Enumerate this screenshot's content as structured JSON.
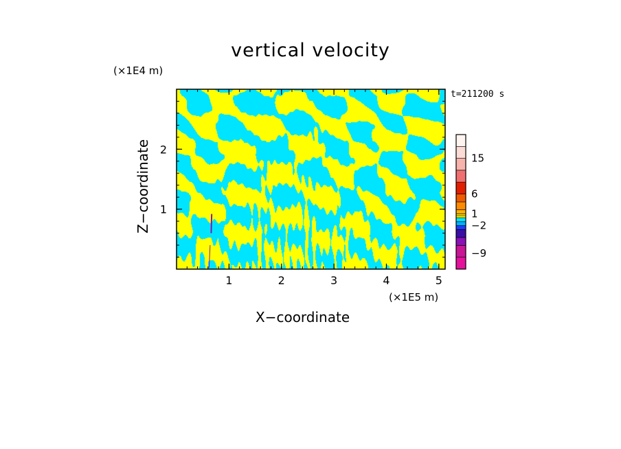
{
  "chart_data": {
    "type": "heatmap",
    "title": "vertical velocity",
    "xlabel": "X−coordinate",
    "ylabel": "Z−coordinate",
    "x_unit": "(×1E5 m)",
    "z_unit": "(×1E4 m)",
    "time_label": "t=211200 s",
    "x_ticks": [
      1,
      2,
      3,
      4,
      5
    ],
    "z_ticks": [
      1,
      2
    ],
    "xlim": [
      0,
      5.12
    ],
    "zlim": [
      0,
      3.0
    ],
    "field_colors": {
      "positive": "#ffff00",
      "negative": "#00e5ff"
    },
    "colorbar": {
      "tick_labels": [
        {
          "label": "15",
          "value": 15
        },
        {
          "label": "6",
          "value": 6
        },
        {
          "label": "1",
          "value": 1
        },
        {
          "label": "−2",
          "value": -2
        },
        {
          "label": "−9",
          "value": -9
        }
      ],
      "segments": [
        {
          "color": "#e5129c",
          "from": -13,
          "to": -10
        },
        {
          "color": "#c81696",
          "from": -10,
          "to": -7
        },
        {
          "color": "#8a12b8",
          "from": -7,
          "to": -5
        },
        {
          "color": "#3a0fa8",
          "from": -5,
          "to": -3
        },
        {
          "color": "#1c3cff",
          "from": -3,
          "to": -2
        },
        {
          "color": "#00b0ff",
          "from": -2,
          "to": -1
        },
        {
          "color": "#00e5ff",
          "from": -1,
          "to": 0
        },
        {
          "color": "#ffff00",
          "from": 0,
          "to": 0.5
        },
        {
          "color": "#ffd400",
          "from": 0.5,
          "to": 1
        },
        {
          "color": "#ffb000",
          "from": 1,
          "to": 2
        },
        {
          "color": "#ff8a00",
          "from": 2,
          "to": 4
        },
        {
          "color": "#f05a00",
          "from": 4,
          "to": 6
        },
        {
          "color": "#e21e00",
          "from": 6,
          "to": 9
        },
        {
          "color": "#f07070",
          "from": 9,
          "to": 12
        },
        {
          "color": "#f6b4ac",
          "from": 12,
          "to": 15
        },
        {
          "color": "#fcdcd6",
          "from": 15,
          "to": 18
        },
        {
          "color": "#fff4f0",
          "from": 18,
          "to": 21
        }
      ]
    }
  }
}
